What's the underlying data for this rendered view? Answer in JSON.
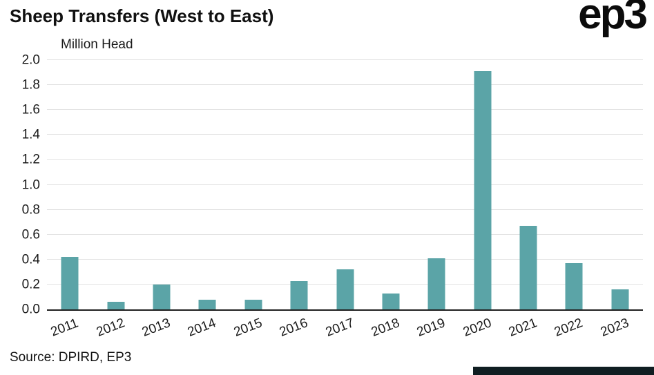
{
  "header": {
    "title": "Sheep Transfers (West to East)",
    "logo_text": "ep3"
  },
  "chart_data": {
    "type": "bar",
    "title": "Sheep Transfers (West to East)",
    "ylabel": "Million Head",
    "xlabel": "",
    "categories": [
      "2011",
      "2012",
      "2013",
      "2014",
      "2015",
      "2016",
      "2017",
      "2018",
      "2019",
      "2020",
      "2021",
      "2022",
      "2023"
    ],
    "values": [
      0.42,
      0.06,
      0.2,
      0.08,
      0.08,
      0.23,
      0.32,
      0.13,
      0.41,
      1.91,
      0.67,
      0.37,
      0.16
    ],
    "ylim": [
      0,
      2.0
    ],
    "ytick_step": 0.2,
    "grid": true,
    "legend": "none"
  },
  "footer": {
    "source": "Source: DPIRD, EP3"
  },
  "colors": {
    "bar": "#5ba4a7",
    "grid": "#e2e2e2",
    "axis": "#1f1f1f",
    "text": "#1a1a1a",
    "accent_strip": "#101e22"
  }
}
